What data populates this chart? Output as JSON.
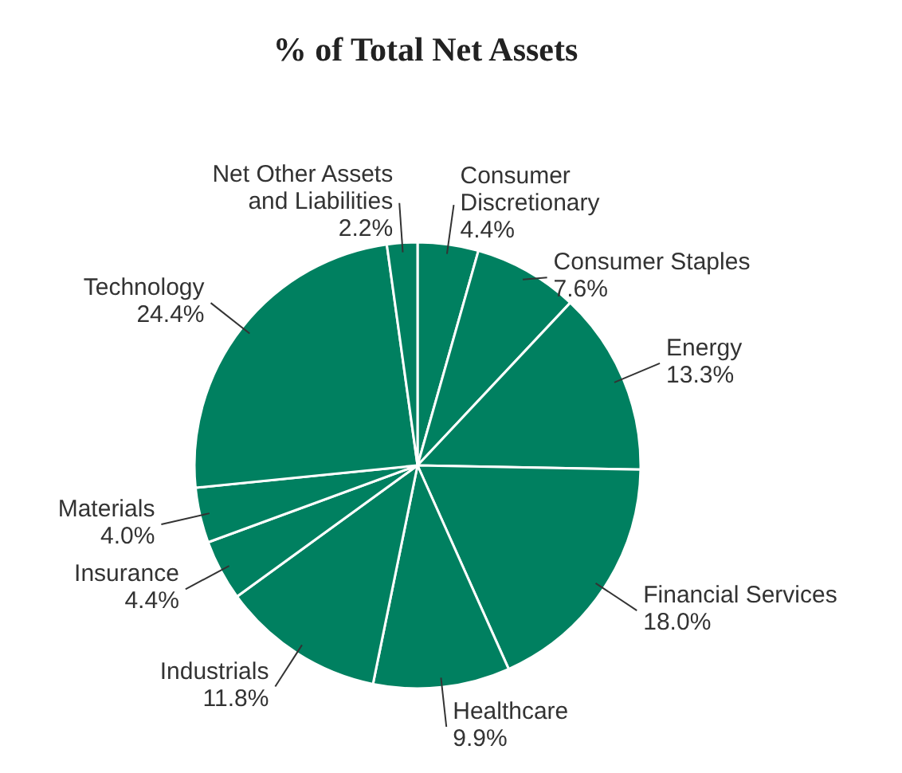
{
  "chart_data": {
    "type": "pie",
    "title": "% of Total Net Assets",
    "categories": [
      "Consumer Discretionary",
      "Consumer Staples",
      "Energy",
      "Financial Services",
      "Healthcare",
      "Industrials",
      "Insurance",
      "Materials",
      "Technology",
      "Net Other Assets and Liabilities"
    ],
    "values": [
      4.4,
      7.6,
      13.3,
      18.0,
      9.9,
      11.8,
      4.4,
      4.0,
      24.4,
      2.2
    ],
    "colors": [
      "#008060",
      "#008060",
      "#008060",
      "#008060",
      "#008060",
      "#008060",
      "#008060",
      "#008060",
      "#008060",
      "#008060"
    ],
    "value_labels": [
      "4.4%",
      "7.6%",
      "13.3%",
      "18.0%",
      "9.9%",
      "11.8%",
      "4.4%",
      "4.0%",
      "24.4%",
      "2.2%"
    ]
  }
}
